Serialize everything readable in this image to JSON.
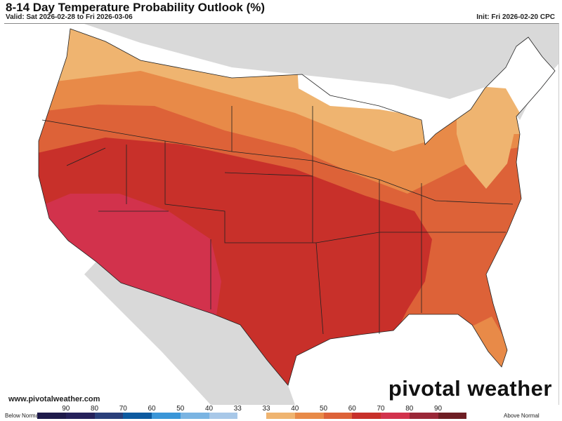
{
  "header": {
    "title": "8-14 Day Temperature Probability Outlook (%)",
    "valid": "Valid: Sat 2026-02-28 to Fri 2026-03-06",
    "init": "Init: Fri 2026-02-20 CPC"
  },
  "footer": {
    "website": "www.pivotalweather.com",
    "logo_text": "pivotal weather"
  },
  "legend": {
    "below_label": "Below Normal",
    "above_label": "Above Normal",
    "tick_labels": [
      "90",
      "80",
      "70",
      "60",
      "50",
      "40",
      "33",
      "33",
      "40",
      "50",
      "60",
      "70",
      "80",
      "90"
    ],
    "colors": [
      "#1e1a4a",
      "#25215a",
      "#2a3f7a",
      "#0d5aa0",
      "#3a96d8",
      "#7ab4e2",
      "#a8c8e8",
      "#ffffff",
      "#efb470",
      "#e88a48",
      "#dd6238",
      "#c8302a",
      "#d2324c",
      "#9a2838",
      "#6e1e24",
      "#ffffff"
    ]
  },
  "map": {
    "category_colors": {
      "near_normal": "#ffffff",
      "above_33_40": "#efb470",
      "above_40_50": "#e88a48",
      "above_50_60": "#dd6238",
      "above_60_70": "#c8302a",
      "above_70_80": "#d2324c"
    },
    "background_land": "#d9d9d9"
  }
}
